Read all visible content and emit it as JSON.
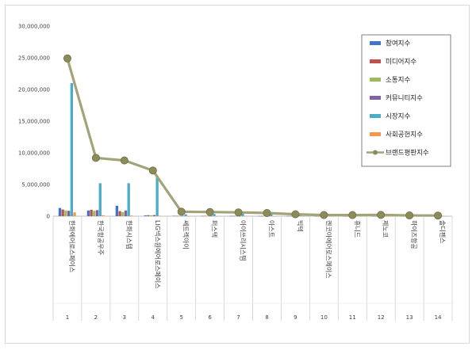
{
  "chart_data": {
    "type": "bar",
    "title": "",
    "xlabel": "",
    "ylabel": "",
    "ylim": [
      0,
      30000000
    ],
    "yticks": [
      "0",
      "5,000,000",
      "10,000,000",
      "15,000,000",
      "20,000,000",
      "25,000,000",
      "30,000,000"
    ],
    "index_labels": [
      "1",
      "2",
      "3",
      "4",
      "5",
      "6",
      "7",
      "8",
      "9",
      "10",
      "11",
      "12",
      "13",
      "14"
    ],
    "categories": [
      "한화에어로스페이스",
      "한국항공우주",
      "한화시스템",
      "LIG넥스원에어로스페이스",
      "쎄트렉아이",
      "퍼스텍",
      "아이쓰리시스템",
      "아스트",
      "빅텍",
      "켄코아에어로스페이스",
      "휴니드",
      "제노코",
      "하이즈항공",
      "솔디펜스"
    ],
    "legend_position": "top-right",
    "grid": false,
    "series": [
      {
        "name": "참여지수",
        "type": "bar",
        "color": "#4472c4",
        "values": [
          1300000,
          900000,
          1650000,
          120000,
          60000,
          40000,
          40000,
          30000,
          20000,
          20000,
          15000,
          15000,
          10000,
          10000
        ]
      },
      {
        "name": "미디어지수",
        "type": "bar",
        "color": "#c0504d",
        "values": [
          1050000,
          1000000,
          800000,
          160000,
          50000,
          50000,
          40000,
          40000,
          30000,
          25000,
          20000,
          20000,
          15000,
          10000
        ]
      },
      {
        "name": "소통지수",
        "type": "bar",
        "color": "#9bbb59",
        "values": [
          900000,
          850000,
          650000,
          140000,
          40000,
          30000,
          30000,
          25000,
          20000,
          15000,
          10000,
          10000,
          10000,
          10000
        ]
      },
      {
        "name": "커뮤니티지수",
        "type": "bar",
        "color": "#8064a2",
        "values": [
          850000,
          950000,
          900000,
          180000,
          50000,
          40000,
          30000,
          30000,
          20000,
          20000,
          15000,
          10000,
          10000,
          10000
        ]
      },
      {
        "name": "시장지수",
        "type": "bar",
        "color": "#4bacc6",
        "values": [
          21000000,
          5200000,
          5200000,
          6400000,
          300000,
          350000,
          400000,
          350000,
          250000,
          120000,
          100000,
          120000,
          50000,
          50000
        ]
      },
      {
        "name": "사회공헌지수",
        "type": "bar",
        "color": "#f79646",
        "values": [
          600000,
          150000,
          100000,
          60000,
          10000,
          10000,
          10000,
          10000,
          10000,
          10000,
          10000,
          10000,
          10000,
          10000
        ]
      },
      {
        "name": "브랜드평판지수",
        "type": "line",
        "color": "#8c8c5a",
        "values": [
          24900000,
          9200000,
          8800000,
          7200000,
          700000,
          650000,
          600000,
          500000,
          300000,
          180000,
          170000,
          200000,
          120000,
          100000
        ]
      }
    ]
  }
}
